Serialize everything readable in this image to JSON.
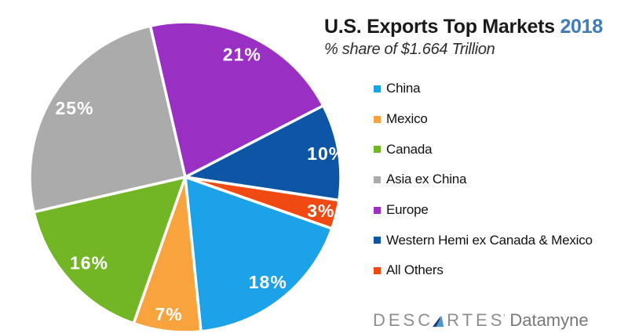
{
  "title": {
    "main": "U.S. Exports Top Markets",
    "year": "2018",
    "subtitle": "% share of $1.664 Trillion"
  },
  "colors": {
    "year_accent": "#3E7CB9",
    "title_text": "#1A1A1A",
    "background": "#FFFFFF",
    "pie_separator": "#FFFFFF",
    "logo_gray": "#8C8E91",
    "logo_dark_gray": "#77787B",
    "logo_sail_navy": "#1C3A6B",
    "logo_sail_blue": "#4A97D2"
  },
  "chart_data": {
    "type": "pie",
    "title": "U.S. Exports Top Markets 2018",
    "subtitle": "% share of $1.664 Trillion",
    "total_label": "$1.664 Trillion",
    "start_angle_deg": -13,
    "direction": "clockwise",
    "legend_position": "right",
    "slices": [
      {
        "label": "Europe",
        "value": 21,
        "display": "21%",
        "color": "#9A2FC4",
        "label_radius": 0.87
      },
      {
        "label": "Western Hemi ex Canada & Mexico",
        "value": 10,
        "display": "10%",
        "color": "#0D55A5",
        "label_radius": 0.92
      },
      {
        "label": "All Others",
        "value": 3,
        "display": "3%",
        "color": "#F04A12",
        "label_radius": 0.9
      },
      {
        "label": "China",
        "value": 18,
        "display": "18%",
        "color": "#1BA2E8",
        "label_radius": 0.86
      },
      {
        "label": "Mexico",
        "value": 7,
        "display": "7%",
        "color": "#F9A33F",
        "label_radius": 0.89
      },
      {
        "label": "Canada",
        "value": 16,
        "display": "16%",
        "color": "#72B626",
        "label_radius": 0.83
      },
      {
        "label": "Asia ex China",
        "value": 25,
        "display": "25%",
        "color": "#ABABAB",
        "label_radius": 0.84
      }
    ]
  },
  "legend": {
    "items": [
      {
        "label": "China",
        "color": "#1BA2E8"
      },
      {
        "label": "Mexico",
        "color": "#F9A33F"
      },
      {
        "label": "Canada",
        "color": "#72B626"
      },
      {
        "label": "Asia ex China",
        "color": "#ABABAB"
      },
      {
        "label": "Europe",
        "color": "#9A2FC4"
      },
      {
        "label": "Western Hemi ex Canada & Mexico",
        "color": "#0D55A5"
      },
      {
        "label": "All Others",
        "color": "#F04A12"
      }
    ]
  },
  "logo": {
    "brand_left": "DESC",
    "brand_right": "RTES",
    "brand_full": "DESCARTES",
    "trademark_glyph": "'",
    "product": "Datamyne"
  }
}
